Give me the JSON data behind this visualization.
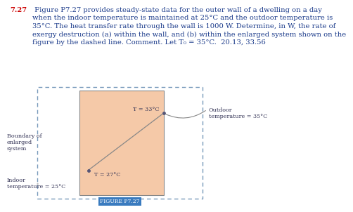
{
  "title_number": "7.27",
  "title_body": " Figure P7.27 provides steady-state data for the outer wall of a dwelling on a day\nwhen the indoor temperature is maintained at 25°C and the outdoor temperature is\n35°C. The heat transfer rate through the wall is 1000 W. Determine, in W, the rate of\nexergy destruction (a) within the wall, and (b) within the enlarged system shown on the\nfigure by the dashed line. Comment. Let T₀ = 35°C.  20.13, 33.56",
  "title_color": "#1a3a8a",
  "number_color": "#cc0000",
  "wall_fill": "#f5c9a8",
  "wall_edge": "#888888",
  "dash_color": "#7799bb",
  "line_color": "#888888",
  "dot_color": "#555577",
  "label_color": "#333355",
  "indoor_label": "Indoor\ntemperature = 25°C",
  "outdoor_label": "Outdoor\ntemperature = 35°C",
  "boundary_label": "Boundary of\nenlarged\nsystem",
  "T1_label": "T = 33°C",
  "T2_label": "T = 27°C",
  "caption": "FIGURE P7.27",
  "caption_bg": "#3a7bbf",
  "caption_fg": "#ffffff",
  "bg": "#ffffff",
  "title_fontsize": 7.2,
  "label_fontsize": 5.8
}
